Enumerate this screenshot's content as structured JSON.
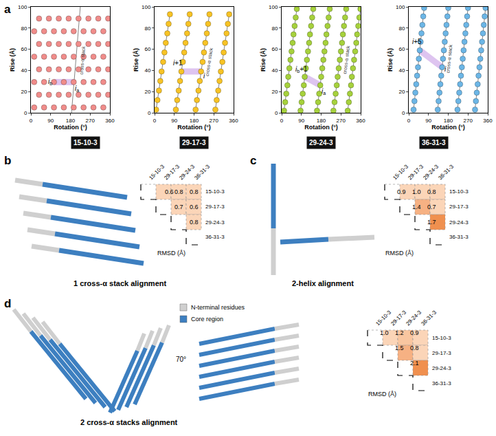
{
  "chart_data": [
    {
      "type": "scatter",
      "title": "15-10-3",
      "color": "#f08c8a",
      "marker": "circle",
      "grid": false,
      "x_label": "Rotation (°)",
      "y_label": "Rise (Å)",
      "xlim": [
        0,
        360
      ],
      "xticks": [
        0,
        90,
        180,
        270,
        360
      ],
      "ylim": [
        0,
        100
      ],
      "yticks": [
        0,
        20,
        40,
        60,
        80,
        100
      ],
      "x": [
        15,
        60,
        105,
        150,
        195,
        240,
        285,
        330,
        37,
        82,
        127,
        172,
        217,
        262,
        307,
        352,
        15,
        60,
        105,
        150,
        195,
        240,
        285,
        330,
        37,
        82,
        127,
        172,
        217,
        262,
        307,
        352,
        15,
        60,
        105,
        150,
        195,
        240,
        285,
        330,
        37,
        82,
        127,
        172,
        217,
        262,
        307,
        352,
        15,
        60,
        105,
        150,
        195,
        240,
        285,
        330,
        37,
        82,
        127,
        172,
        217,
        262,
        307,
        352
      ],
      "y": [
        5,
        5,
        5,
        5,
        5,
        5,
        5,
        5,
        17,
        17,
        17,
        17,
        17,
        17,
        17,
        17,
        29,
        29,
        29,
        29,
        29,
        29,
        29,
        29,
        41,
        41,
        41,
        41,
        41,
        41,
        41,
        41,
        53,
        53,
        53,
        53,
        53,
        53,
        53,
        53,
        65,
        65,
        65,
        65,
        65,
        65,
        65,
        65,
        77,
        77,
        77,
        77,
        77,
        77,
        77,
        77,
        89,
        89,
        89,
        89,
        89,
        89,
        89,
        89
      ],
      "stack_lines": [
        {
          "x": [
            185,
            225
          ],
          "y": [
            0,
            100
          ],
          "label": "cross-α stack"
        }
      ],
      "highlight": {
        "x": [
          105,
          195
        ],
        "y": [
          29,
          29
        ]
      },
      "annotations": [
        {
          "text": "i",
          "sub": "b",
          "x": 88,
          "y": 29
        },
        {
          "text": "i",
          "sub": "a",
          "x": 210,
          "y": 23
        }
      ]
    },
    {
      "type": "scatter",
      "title": "29-17-3",
      "color": "#f7c325",
      "marker": "circle",
      "grid": false,
      "x_label": "Rotation (°)",
      "y_label": "Rise (Å)",
      "xlim": [
        0,
        360
      ],
      "xticks": [
        0,
        90,
        180,
        270,
        360
      ],
      "ylim": [
        0,
        100
      ],
      "yticks": [
        0,
        20,
        40,
        60,
        80,
        100
      ],
      "x": [
        7,
        13,
        20,
        26,
        32,
        39,
        45,
        51,
        58,
        64,
        70,
        97,
        103,
        110,
        116,
        122,
        129,
        135,
        141,
        148,
        154,
        160,
        187,
        193,
        200,
        206,
        212,
        219,
        225,
        231,
        238,
        244,
        250,
        277,
        283,
        290,
        296,
        302,
        309,
        315,
        321,
        328,
        334,
        340
      ],
      "y": [
        3,
        12,
        21,
        30,
        39,
        48,
        57,
        66,
        75,
        84,
        93,
        3,
        12,
        21,
        30,
        39,
        48,
        57,
        66,
        75,
        84,
        93,
        3,
        12,
        21,
        30,
        39,
        48,
        57,
        66,
        75,
        84,
        93,
        3,
        12,
        21,
        30,
        39,
        48,
        57,
        66,
        75,
        84,
        93
      ],
      "stack_lines": [
        {
          "x": [
            7,
            70
          ],
          "y": [
            3,
            93
          ]
        },
        {
          "x": [
            97,
            160
          ],
          "y": [
            3,
            93
          ]
        },
        {
          "x": [
            187,
            250
          ],
          "y": [
            3,
            93
          ],
          "label": "cross-α stack"
        },
        {
          "x": [
            277,
            340
          ],
          "y": [
            3,
            93
          ]
        }
      ],
      "highlight": {
        "x": [
          122,
          212
        ],
        "y": [
          39,
          39
        ]
      },
      "annotations": [
        {
          "text": "i",
          "suffix": "+1",
          "x": 105,
          "y": 47
        },
        {
          "text": "i",
          "x": 226,
          "y": 35
        }
      ]
    },
    {
      "type": "scatter",
      "title": "29-24-3",
      "color": "#a6d13c",
      "marker": "circle",
      "grid": false,
      "x_label": "Rotation (°)",
      "y_label": "Rise (Å)",
      "xlim": [
        0,
        360
      ],
      "xticks": [
        0,
        90,
        180,
        270,
        360
      ],
      "ylim": [
        0,
        100
      ],
      "yticks": [
        0,
        20,
        40,
        60,
        80,
        100
      ],
      "x": [
        11,
        16,
        21,
        26,
        30,
        35,
        40,
        45,
        50,
        54,
        59,
        64,
        69,
        86,
        91,
        96,
        101,
        105,
        110,
        115,
        120,
        125,
        129,
        134,
        139,
        144,
        161,
        166,
        171,
        176,
        180,
        185,
        190,
        195,
        200,
        204,
        209,
        214,
        219,
        236,
        241,
        246,
        251,
        255,
        260,
        265,
        270,
        275,
        279,
        284,
        289,
        294,
        301,
        306,
        311,
        316,
        320,
        325,
        330,
        335,
        340,
        344,
        349,
        354,
        359
      ],
      "y": [
        2,
        10,
        18,
        26,
        34,
        42,
        50,
        58,
        66,
        74,
        82,
        90,
        98,
        2,
        10,
        18,
        26,
        34,
        42,
        50,
        58,
        66,
        74,
        82,
        90,
        98,
        2,
        10,
        18,
        26,
        34,
        42,
        50,
        58,
        66,
        74,
        82,
        90,
        98,
        2,
        10,
        18,
        26,
        34,
        42,
        50,
        58,
        66,
        74,
        82,
        90,
        98,
        2,
        10,
        18,
        26,
        34,
        42,
        50,
        58,
        66,
        74,
        82,
        90,
        98
      ],
      "stack_lines": [
        {
          "x": [
            11,
            69
          ],
          "y": [
            2,
            98
          ]
        },
        {
          "x": [
            86,
            144
          ],
          "y": [
            2,
            98
          ]
        },
        {
          "x": [
            161,
            219
          ],
          "y": [
            2,
            98
          ]
        },
        {
          "x": [
            236,
            294
          ],
          "y": [
            2,
            98
          ],
          "label": "cross-α stack"
        },
        {
          "x": [
            301,
            359
          ],
          "y": [
            2,
            98
          ]
        }
      ],
      "highlight": {
        "x": [
          105,
          176
        ],
        "y": [
          34,
          26
        ]
      },
      "annotations": [
        {
          "text": "i",
          "sub": "b",
          "suffix": "+1",
          "x": 90,
          "y": 41
        },
        {
          "text": "i",
          "sub": "a",
          "x": 192,
          "y": 20
        }
      ]
    },
    {
      "type": "scatter",
      "title": "36-31-3",
      "color": "#6cb6e6",
      "marker": "circle",
      "grid": false,
      "x_label": "Rotation (°)",
      "y_label": "Rise (Å)",
      "xlim": [
        0,
        360
      ],
      "xticks": [
        0,
        90,
        180,
        270,
        360
      ],
      "ylim": [
        0,
        100
      ],
      "yticks": [
        0,
        20,
        40,
        60,
        80,
        100
      ],
      "x": [
        22,
        26,
        30,
        34,
        38,
        42,
        46,
        50,
        54,
        58,
        62,
        66,
        70,
        132,
        136,
        140,
        144,
        148,
        152,
        156,
        160,
        164,
        168,
        172,
        176,
        180,
        222,
        226,
        230,
        234,
        238,
        242,
        246,
        250,
        254,
        258,
        262,
        266,
        270,
        302,
        306,
        310,
        314,
        318,
        322,
        326,
        330,
        334,
        338,
        342,
        346,
        350
      ],
      "y": [
        3,
        11,
        19,
        27,
        35,
        43,
        51,
        59,
        67,
        75,
        83,
        91,
        99,
        3,
        11,
        19,
        27,
        35,
        43,
        51,
        59,
        67,
        75,
        83,
        91,
        99,
        3,
        11,
        19,
        27,
        35,
        43,
        51,
        59,
        67,
        75,
        83,
        91,
        99,
        3,
        11,
        19,
        27,
        35,
        43,
        51,
        59,
        67,
        75,
        83,
        91,
        99
      ],
      "stack_lines": [
        {
          "x": [
            22,
            70
          ],
          "y": [
            3,
            99
          ]
        },
        {
          "x": [
            132,
            180
          ],
          "y": [
            3,
            99
          ],
          "label": "cross-α stack"
        },
        {
          "x": [
            222,
            270
          ],
          "y": [
            3,
            99
          ]
        },
        {
          "x": [
            302,
            350
          ],
          "y": [
            3,
            99
          ]
        }
      ],
      "highlight": {
        "x": [
          152,
          50
        ],
        "y": [
          43,
          59
        ]
      },
      "annotations": [
        {
          "text": "i",
          "x": 168,
          "y": 41
        },
        {
          "text": "i",
          "suffix": "+5",
          "x": 38,
          "y": 67
        }
      ]
    }
  ],
  "panel_labels": [
    "a",
    "b",
    "c",
    "d"
  ],
  "alignments": [
    {
      "caption": "1 cross-α stack alignment",
      "axis_label": "RMSD (Å)",
      "labels": [
        "15-10-3",
        "29-17-3",
        "29-24-3",
        "36-31-3"
      ],
      "values": [
        [
          null,
          0.6,
          0.8,
          0.8
        ],
        [
          null,
          null,
          0.7,
          0.6
        ],
        [
          null,
          null,
          null,
          0.8
        ]
      ],
      "value_labels": [
        [
          null,
          "0.6",
          "0.8",
          "0.8"
        ],
        [
          null,
          null,
          "0.7",
          "0.6"
        ],
        [
          null,
          null,
          null,
          "0.8"
        ]
      ],
      "colors": [
        [
          null,
          "#fbd5b8",
          "#fbd5b8",
          "#fbd5b8"
        ],
        [
          null,
          null,
          "#fbd5b8",
          "#fbd5b8"
        ],
        [
          null,
          null,
          null,
          "#fbd5b8"
        ]
      ]
    },
    {
      "caption": "2-helix alignment",
      "axis_label": "RMSD (Å)",
      "labels": [
        "15-10-3",
        "29-17-3",
        "29-24-3",
        "36-31-3"
      ],
      "values": [
        [
          null,
          0.9,
          1.0,
          0.8
        ],
        [
          null,
          null,
          1.4,
          0.7
        ],
        [
          null,
          null,
          null,
          1.7
        ]
      ],
      "value_labels": [
        [
          null,
          "0.9",
          "1.0",
          "0.8"
        ],
        [
          null,
          null,
          "1.4",
          "0.7"
        ],
        [
          null,
          null,
          null,
          "1.7"
        ]
      ],
      "colors": [
        [
          null,
          "#fbd5b8",
          "#fbd5b8",
          "#fbd5b8"
        ],
        [
          null,
          null,
          "#f6b183",
          "#fbd5b8"
        ],
        [
          null,
          null,
          null,
          "#f0904f"
        ]
      ]
    },
    {
      "caption": "2 cross-α stacks alignment",
      "axis_label": "RMSD (Å)",
      "labels": [
        "15-10-3",
        "29-17-3",
        "29-24-3",
        "36-31-3"
      ],
      "values": [
        [
          null,
          1.0,
          1.2,
          0.9
        ],
        [
          null,
          null,
          1.5,
          0.8
        ],
        [
          null,
          null,
          null,
          2.1
        ]
      ],
      "value_labels": [
        [
          null,
          "1.0",
          "1.2",
          "0.9"
        ],
        [
          null,
          null,
          "1.5",
          "0.8"
        ],
        [
          null,
          null,
          null,
          "2.1"
        ]
      ],
      "colors": [
        [
          null,
          "#fbd5b8",
          "#f9c6a0",
          "#fbd5b8"
        ],
        [
          null,
          null,
          "#f6b183",
          "#fbd5b8"
        ],
        [
          null,
          null,
          null,
          "#f0904f"
        ]
      ]
    }
  ],
  "structure_key": [
    {
      "label": "N-terminal residues",
      "color": "#cfcfcf"
    },
    {
      "label": "Core region",
      "color": "#3d7fc0"
    }
  ],
  "rotation_label": "70°"
}
